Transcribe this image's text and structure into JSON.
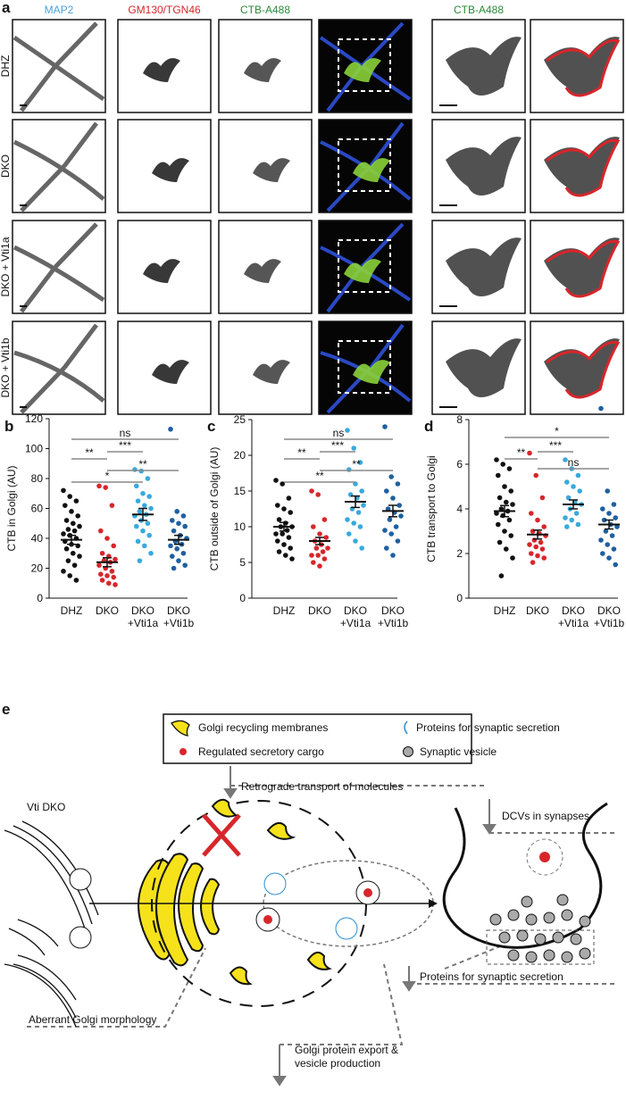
{
  "panel_a": {
    "panel_label": "a",
    "column_headers": [
      "MAP2",
      "GM130/TGN46",
      "CTB-A488",
      "CTB-A488"
    ],
    "row_labels": [
      "DHZ",
      "DKO",
      "DKO + Vti1a",
      "DKO + Vti1b"
    ]
  },
  "chart_data": [
    {
      "type": "dot",
      "panel_label": "b",
      "ylabel": "CTB in Golgi (AU)",
      "categories": [
        [
          "DHZ"
        ],
        [
          "DKO"
        ],
        [
          "DKO",
          "+Vti1a"
        ],
        [
          "DKO",
          "+Vti1b"
        ]
      ],
      "colors": [
        "#111111",
        "#d7262b",
        "#3aa9dc",
        "#1f5fa0"
      ],
      "points": [
        [
          72,
          68,
          65,
          62,
          58,
          55,
          52,
          50,
          48,
          46,
          45,
          43,
          42,
          40,
          38,
          36,
          35,
          33,
          30,
          28,
          25,
          22,
          18,
          15,
          12
        ],
        [
          75,
          74,
          62,
          45,
          40,
          35,
          30,
          28,
          26,
          25,
          24,
          22,
          20,
          18,
          16,
          15,
          14,
          12,
          10,
          9
        ],
        [
          86,
          85,
          80,
          75,
          70,
          68,
          65,
          62,
          60,
          58,
          56,
          55,
          52,
          50,
          48,
          45,
          42,
          38,
          35,
          30,
          25
        ],
        [
          113,
          58,
          55,
          52,
          50,
          48,
          45,
          42,
          40,
          38,
          36,
          35,
          33,
          30,
          28,
          25,
          22,
          20
        ]
      ],
      "means": [
        39,
        24,
        56,
        39
      ],
      "sems": [
        3,
        3,
        4,
        3
      ],
      "ylim": [
        0,
        120
      ],
      "yticks": [
        0,
        20,
        40,
        60,
        80,
        100,
        120
      ],
      "comparisons": [
        {
          "groups": [
            0,
            3
          ],
          "label": "ns"
        },
        {
          "groups": [
            0,
            1
          ],
          "label": "**"
        },
        {
          "groups": [
            1,
            2
          ],
          "label": "***"
        },
        {
          "groups": [
            1,
            3
          ],
          "label": "**"
        },
        {
          "groups": [
            0,
            2
          ],
          "label": "*"
        }
      ]
    },
    {
      "type": "dot",
      "panel_label": "c",
      "ylabel": "CTB outside of Golgi (AU)",
      "categories": [
        [
          "DHZ"
        ],
        [
          "DKO"
        ],
        [
          "DKO",
          "+Vti1a"
        ],
        [
          "DKO",
          "+Vti1b"
        ]
      ],
      "colors": [
        "#111111",
        "#d7262b",
        "#3aa9dc",
        "#1f5fa0"
      ],
      "points": [
        [
          16.5,
          16,
          14,
          13,
          12.5,
          12,
          11,
          10.5,
          10,
          10,
          9.5,
          9,
          9,
          8.5,
          8,
          7.5,
          7,
          6.5,
          6,
          5.5
        ],
        [
          15,
          14.5,
          11,
          10,
          9,
          8.5,
          8,
          7.5,
          7,
          7,
          6.5,
          6,
          6,
          5.5,
          5,
          4.5
        ],
        [
          23.5,
          21,
          19,
          18,
          16,
          15,
          14.5,
          14,
          13,
          12.5,
          12,
          11,
          10.5,
          10,
          9,
          8,
          7
        ],
        [
          24,
          17,
          16,
          15,
          14,
          13,
          12.5,
          12,
          11.5,
          11,
          10,
          9.5,
          9,
          8,
          7,
          6
        ]
      ],
      "means": [
        10,
        8,
        13.5,
        12.2
      ],
      "sems": [
        0.6,
        0.5,
        0.8,
        0.8
      ],
      "ylim": [
        0,
        25
      ],
      "yticks": [
        0,
        5,
        10,
        15,
        20,
        25
      ],
      "comparisons": [
        {
          "groups": [
            0,
            3
          ],
          "label": "ns"
        },
        {
          "groups": [
            0,
            1
          ],
          "label": "**"
        },
        {
          "groups": [
            1,
            2
          ],
          "label": "***"
        },
        {
          "groups": [
            1,
            3
          ],
          "label": "**"
        },
        {
          "groups": [
            0,
            2
          ],
          "label": "**"
        }
      ]
    },
    {
      "type": "dot",
      "panel_label": "d",
      "ylabel": "CTB transport to Golgi",
      "categories": [
        [
          "DHZ"
        ],
        [
          "DKO"
        ],
        [
          "DKO",
          "+Vti1a"
        ],
        [
          "DKO",
          "+Vti1b"
        ]
      ],
      "colors": [
        "#111111",
        "#d7262b",
        "#3aa9dc",
        "#1f5fa0"
      ],
      "points": [
        [
          6.2,
          6,
          5.8,
          5.5,
          5,
          4.8,
          4.5,
          4.3,
          4.2,
          4,
          3.9,
          3.8,
          3.7,
          3.5,
          3.3,
          3,
          2.8,
          2.5,
          2.2,
          1.8,
          1
        ],
        [
          6.5,
          5.5,
          4.5,
          3.8,
          3.5,
          3.2,
          3,
          2.9,
          2.8,
          2.6,
          2.5,
          2.4,
          2.3,
          2.2,
          2,
          1.9,
          1.8,
          1.6
        ],
        [
          6.2,
          5.8,
          5.5,
          5.2,
          5,
          4.8,
          4.5,
          4.3,
          4.2,
          4,
          3.8,
          3.6,
          3.5,
          3.3,
          3.2
        ],
        [
          8.5,
          4.8,
          4.2,
          4,
          3.8,
          3.6,
          3.5,
          3.3,
          3.2,
          3,
          2.8,
          2.6,
          2.4,
          2.2,
          2,
          1.8,
          1.5
        ]
      ],
      "means": [
        3.9,
        2.85,
        4.2,
        3.3
      ],
      "sems": [
        0.25,
        0.2,
        0.2,
        0.2
      ],
      "ylim": [
        0,
        8
      ],
      "yticks": [
        0,
        2,
        4,
        6,
        8
      ],
      "comparisons": [
        {
          "groups": [
            0,
            3
          ],
          "label": "*"
        },
        {
          "groups": [
            1,
            2
          ],
          "label": "***"
        },
        {
          "groups": [
            0,
            1
          ],
          "label": "**"
        },
        {
          "groups": [
            1,
            3
          ],
          "label": "ns"
        }
      ]
    }
  ],
  "panel_e": {
    "panel_label": "e",
    "legend": [
      "Golgi recycling membranes",
      "Proteins for synaptic secretion",
      "Regulated secretory cargo",
      "Synaptic vesicle"
    ],
    "labels": {
      "retrograde": "Retrograde transport of molecules",
      "vti_dko": "Vti DKO",
      "dcvs": "DCVs in synapses",
      "proteins": "Proteins for synaptic secretion",
      "aberrant": "Aberrant Golgi morphology",
      "export": [
        "Golgi protein export &",
        "vesicle production"
      ]
    }
  }
}
